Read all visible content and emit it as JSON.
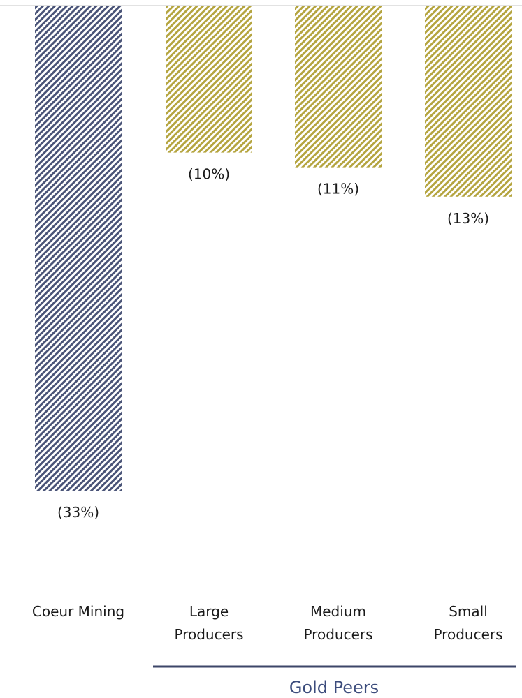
{
  "chart_data": {
    "type": "bar",
    "categories": [
      "Coeur Mining",
      "Large\nProducers",
      "Medium\nProducers",
      "Small\nProducers"
    ],
    "values": [
      -33,
      -10,
      -11,
      -13
    ],
    "value_labels": [
      "(33%)",
      "(10%)",
      "(11%)",
      "(13%)"
    ],
    "group_label": "Gold Peers",
    "group_members": [
      "Large\nProducers",
      "Medium\nProducers",
      "Small\nProducers"
    ],
    "ylim": [
      -33,
      0
    ],
    "colors": {
      "coeur_fg": "#4a5478",
      "peer_fg": "#b5a540",
      "group_rule": "#3c4668",
      "group_text": "#3c4c7c",
      "baseline": "#d9d9d9"
    }
  }
}
